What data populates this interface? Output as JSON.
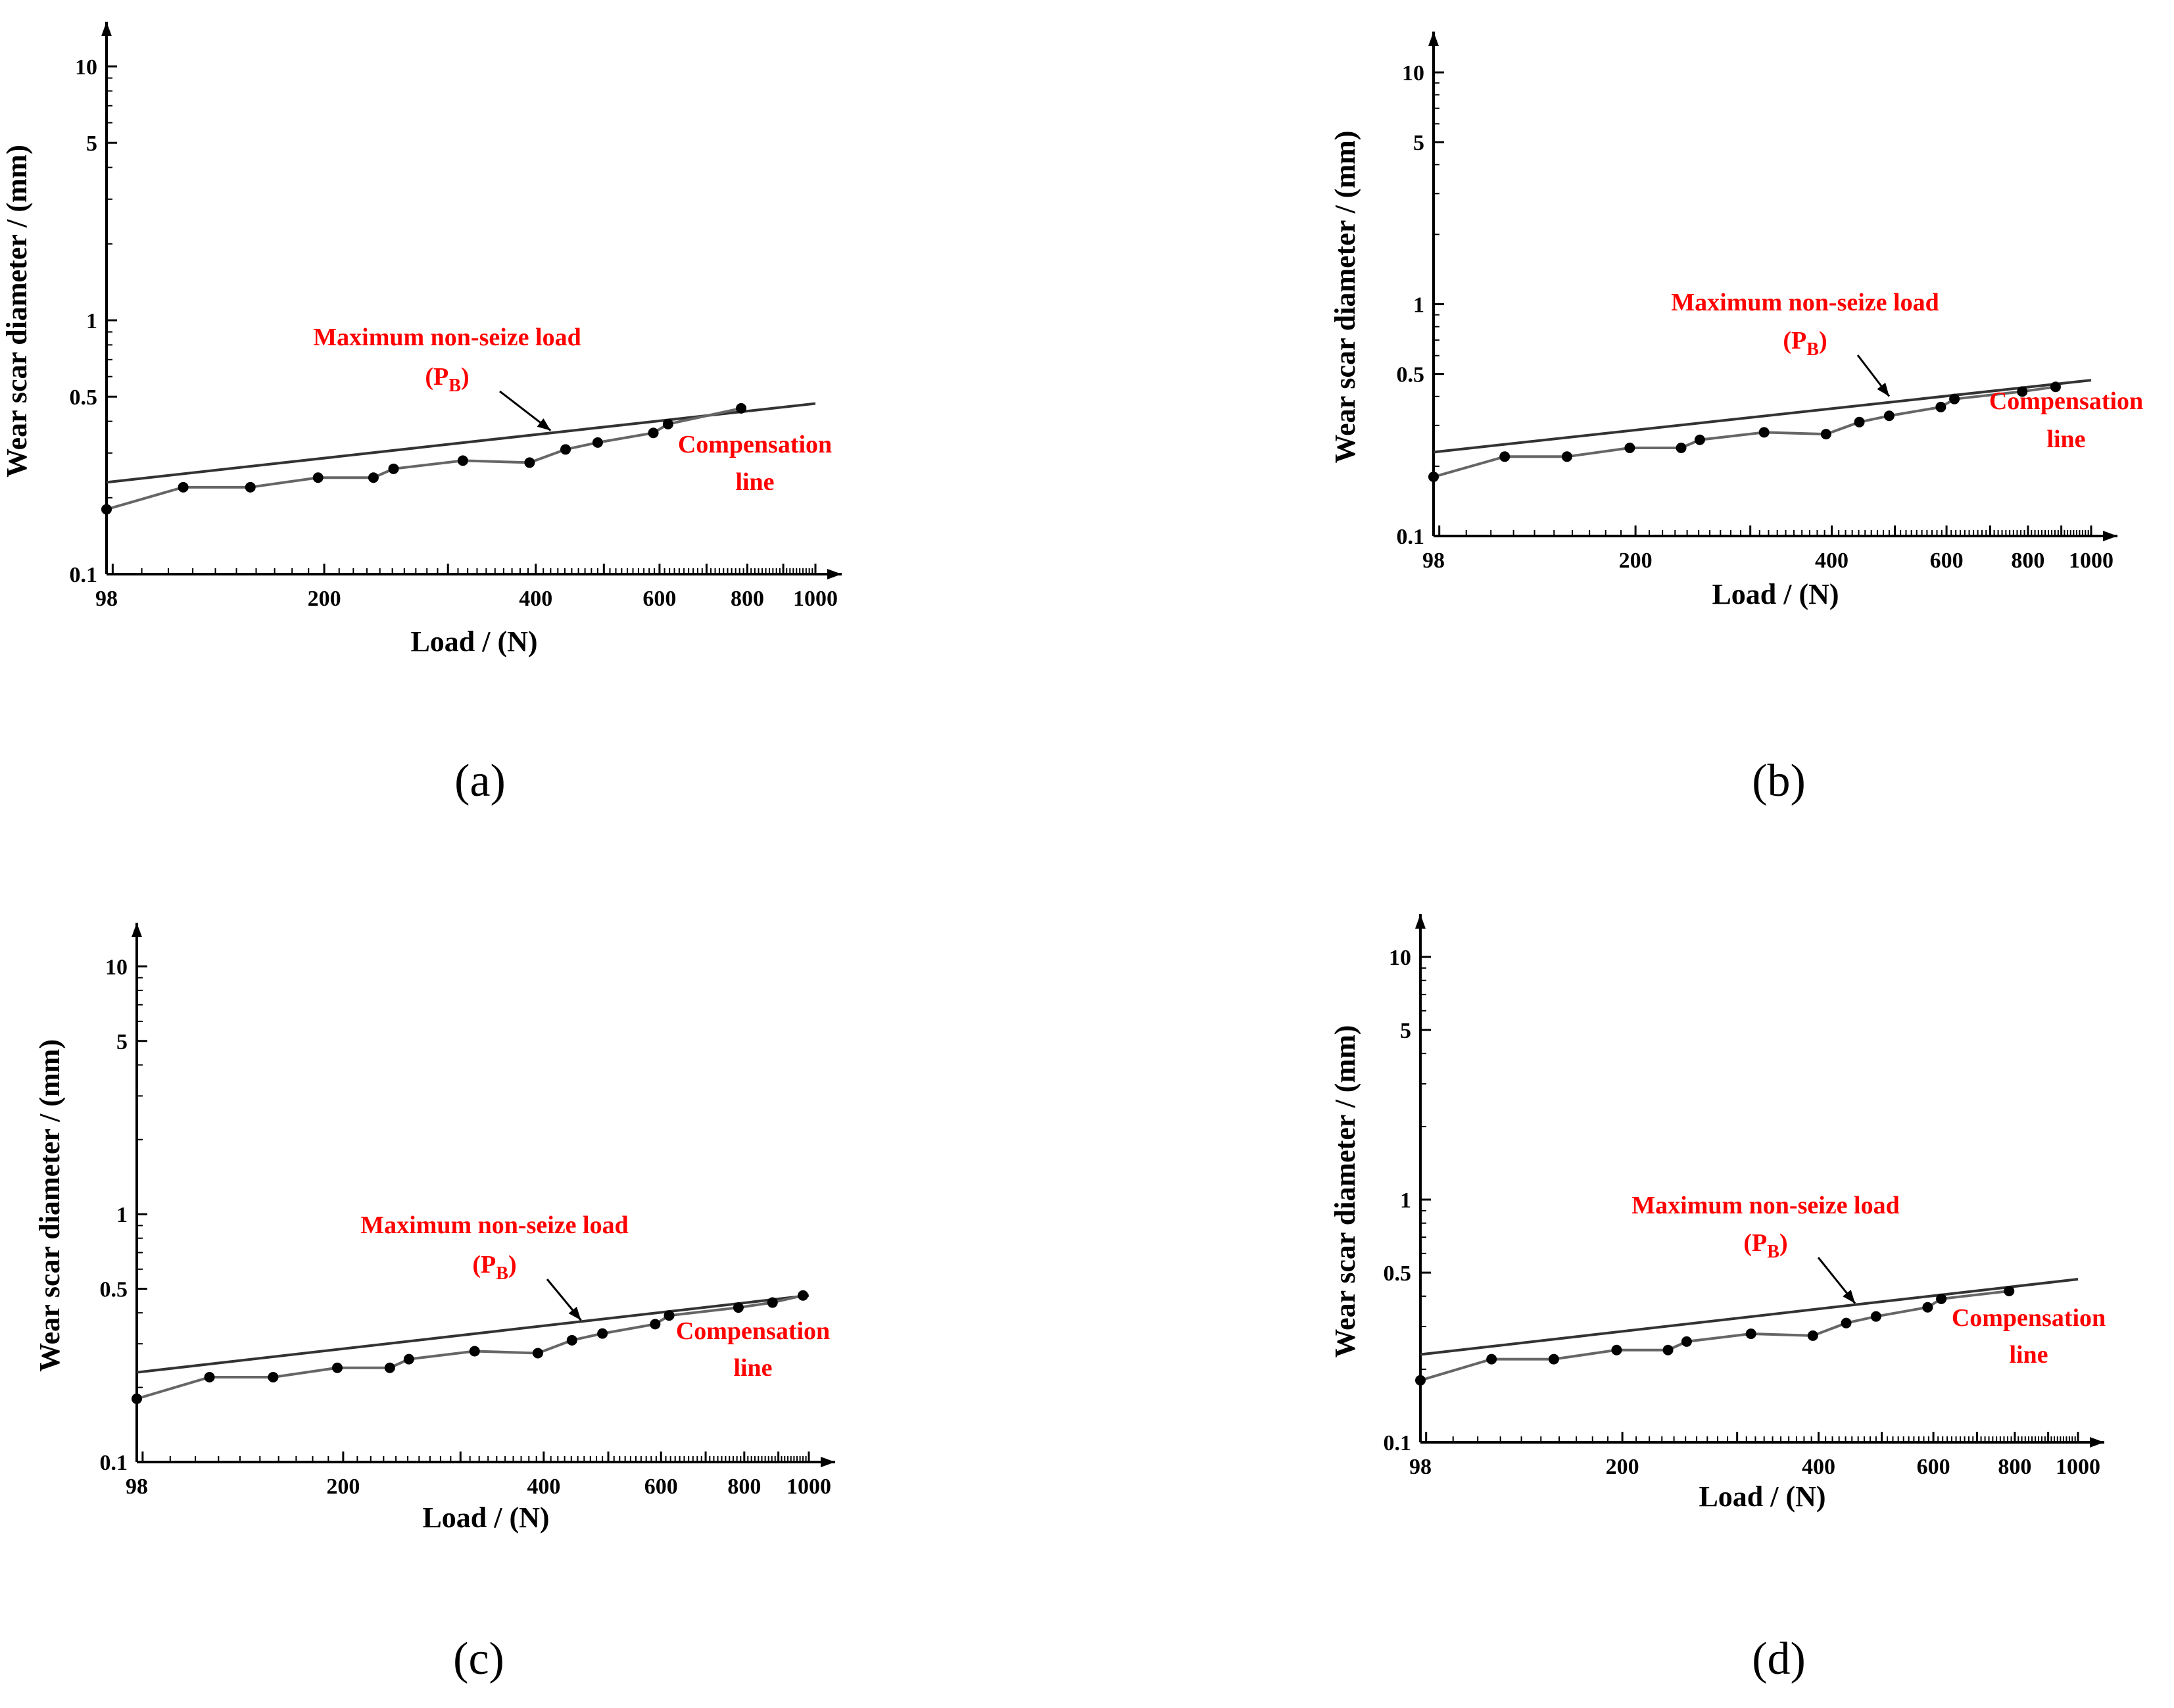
{
  "colors": {
    "annotation": "#ff0000",
    "axis": "#000000",
    "data_line": "#666666",
    "compensation_line": "#333333",
    "markers": "#000000"
  },
  "chart_data": [
    {
      "id": "a",
      "type": "line",
      "panel_label": "(a)",
      "xscale": "log",
      "yscale": "log",
      "xlim": [
        98,
        1000
      ],
      "ylim": [
        0.1,
        15
      ],
      "xlabel": "Load / (N)",
      "ylabel": "Wear scar diameter / (mm)",
      "x_tick_labels": [
        "98",
        "200",
        "400",
        "600",
        "800",
        "1000"
      ],
      "y_tick_labels": [
        "0.1",
        "0.5",
        "1",
        "5",
        "10"
      ],
      "series": [
        {
          "name": "Wear scar diameter",
          "x": [
            98,
            126,
            157,
            196,
            235,
            251,
            315,
            392,
            441,
            490,
            588,
            617,
            784
          ],
          "y": [
            0.18,
            0.22,
            0.22,
            0.24,
            0.24,
            0.26,
            0.28,
            0.275,
            0.31,
            0.33,
            0.36,
            0.39,
            0.45
          ]
        },
        {
          "name": "Compensation line",
          "x": [
            98,
            1000
          ],
          "y": [
            0.23,
            0.47
          ]
        }
      ],
      "annotations": {
        "pb_title": "Maximum non-seize load",
        "pb_symbol": "P",
        "pb_sub": "B",
        "comp_line1": "Compensation",
        "comp_line2": "line"
      }
    },
    {
      "id": "b",
      "type": "line",
      "panel_label": "(b)",
      "xscale": "log",
      "yscale": "log",
      "xlim": [
        98,
        1000
      ],
      "ylim": [
        0.1,
        15
      ],
      "xlabel": "Load / (N)",
      "ylabel": "Wear scar diameter / (mm)",
      "x_tick_labels": [
        "98",
        "200",
        "400",
        "600",
        "800",
        "1000"
      ],
      "y_tick_labels": [
        "0.1",
        "0.5",
        "1",
        "5",
        "10"
      ],
      "series": [
        {
          "name": "Wear scar diameter",
          "x": [
            98,
            126,
            157,
            196,
            235,
            251,
            315,
            392,
            441,
            490,
            588,
            617,
            784,
            882
          ],
          "y": [
            0.18,
            0.22,
            0.22,
            0.24,
            0.24,
            0.26,
            0.28,
            0.275,
            0.31,
            0.33,
            0.36,
            0.39,
            0.42,
            0.44
          ],
          "comment_ignored": ""
        },
        {
          "name": "Compensation line",
          "x": [
            98,
            1000
          ],
          "y": [
            0.23,
            0.47
          ]
        }
      ],
      "annotations": {
        "pb_title": "Maximum non-seize load",
        "pb_symbol": "P",
        "pb_sub": "B",
        "comp_line1": "Compensation",
        "comp_line2": "line"
      }
    },
    {
      "id": "c",
      "type": "line",
      "panel_label": "(c)",
      "xscale": "log",
      "yscale": "log",
      "xlim": [
        98,
        1000
      ],
      "ylim": [
        0.1,
        15
      ],
      "xlabel": "Load / (N)",
      "ylabel": "Wear scar diameter / (mm)",
      "x_tick_labels": [
        "98",
        "200",
        "400",
        "600",
        "800",
        "1000"
      ],
      "y_tick_labels": [
        "0.1",
        "0.5",
        "1",
        "5",
        "10"
      ],
      "series": [
        {
          "name": "Wear scar diameter",
          "x": [
            98,
            126,
            157,
            196,
            235,
            251,
            315,
            392,
            441,
            490,
            588,
            617,
            784,
            882,
            980
          ],
          "y": [
            0.18,
            0.22,
            0.22,
            0.24,
            0.24,
            0.26,
            0.28,
            0.275,
            0.31,
            0.33,
            0.36,
            0.39,
            0.42,
            0.44,
            0.47
          ]
        },
        {
          "name": "Compensation line",
          "x": [
            98,
            1000
          ],
          "y": [
            0.23,
            0.47
          ]
        }
      ],
      "annotations": {
        "pb_title": "Maximum non-seize load",
        "pb_symbol": "P",
        "pb_sub": "B",
        "comp_line1": "Compensation",
        "comp_line2": "line"
      }
    },
    {
      "id": "d",
      "type": "line",
      "panel_label": "(d)",
      "xscale": "log",
      "yscale": "log",
      "xlim": [
        98,
        1000
      ],
      "ylim": [
        0.1,
        15
      ],
      "xlabel": "Load / (N)",
      "ylabel": "Wear scar diameter / (mm)",
      "x_tick_labels": [
        "98",
        "200",
        "400",
        "600",
        "800",
        "1000"
      ],
      "y_tick_labels": [
        "0.1",
        "0.5",
        "1",
        "5",
        "10"
      ],
      "series": [
        {
          "name": "Wear scar diameter",
          "x": [
            98,
            126,
            157,
            196,
            235,
            251,
            315,
            392,
            441,
            490,
            588,
            617,
            784
          ],
          "y": [
            0.18,
            0.22,
            0.22,
            0.24,
            0.24,
            0.26,
            0.28,
            0.275,
            0.31,
            0.33,
            0.36,
            0.39,
            0.42
          ]
        },
        {
          "name": "Compensation line",
          "x": [
            98,
            1000
          ],
          "y": [
            0.23,
            0.47
          ]
        }
      ],
      "annotations": {
        "pb_title": "Maximum non-seize load",
        "pb_symbol": "P",
        "pb_sub": "B",
        "comp_line1": "Compensation",
        "comp_line2": "line"
      }
    }
  ]
}
